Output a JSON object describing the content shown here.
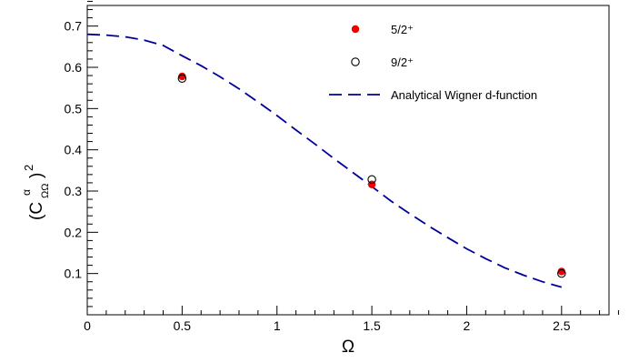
{
  "chart_data": {
    "type": "scatter",
    "xlabel": "Ω",
    "ylabel": {
      "base": "(C",
      "sup": "α",
      "sub": "ΩΩ",
      "close": ")",
      "power": "2"
    },
    "xlim": [
      0,
      2.75
    ],
    "ylim": [
      0,
      0.75
    ],
    "x_ticks": [
      "0",
      "0.5",
      "1",
      "1.5",
      "2",
      "2.5"
    ],
    "y_ticks": [
      "0.1",
      "0.2",
      "0.3",
      "0.4",
      "0.5",
      "0.6",
      "0.7"
    ],
    "grid": false,
    "legend_position": "top-right",
    "series": [
      {
        "name": "5/2⁺",
        "marker": "filled-circle",
        "color": "#ee0000",
        "points": [
          {
            "x": 0.5,
            "y": 0.578
          },
          {
            "x": 1.5,
            "y": 0.316
          },
          {
            "x": 2.5,
            "y": 0.105
          }
        ]
      },
      {
        "name": "9/2⁺",
        "marker": "open-circle",
        "color": "#000000",
        "points": [
          {
            "x": 0.5,
            "y": 0.573
          },
          {
            "x": 1.5,
            "y": 0.328
          },
          {
            "x": 2.5,
            "y": 0.1
          }
        ]
      },
      {
        "name": "Analytical Wigner d-function",
        "marker": "dashed-line",
        "color": "#000099",
        "points": [
          {
            "x": 0.0,
            "y": 0.68
          },
          {
            "x": 0.1,
            "y": 0.678
          },
          {
            "x": 0.2,
            "y": 0.674
          },
          {
            "x": 0.3,
            "y": 0.666
          },
          {
            "x": 0.4,
            "y": 0.653
          },
          {
            "x": 0.5,
            "y": 0.628
          },
          {
            "x": 0.6,
            "y": 0.604
          },
          {
            "x": 0.7,
            "y": 0.577
          },
          {
            "x": 0.8,
            "y": 0.548
          },
          {
            "x": 0.9,
            "y": 0.516
          },
          {
            "x": 1.0,
            "y": 0.483
          },
          {
            "x": 1.1,
            "y": 0.448
          },
          {
            "x": 1.2,
            "y": 0.414
          },
          {
            "x": 1.3,
            "y": 0.379
          },
          {
            "x": 1.4,
            "y": 0.345
          },
          {
            "x": 1.5,
            "y": 0.311
          },
          {
            "x": 1.6,
            "y": 0.276
          },
          {
            "x": 1.7,
            "y": 0.245
          },
          {
            "x": 1.8,
            "y": 0.215
          },
          {
            "x": 1.9,
            "y": 0.187
          },
          {
            "x": 2.0,
            "y": 0.16
          },
          {
            "x": 2.1,
            "y": 0.136
          },
          {
            "x": 2.2,
            "y": 0.114
          },
          {
            "x": 2.3,
            "y": 0.096
          },
          {
            "x": 2.4,
            "y": 0.08
          },
          {
            "x": 2.5,
            "y": 0.067
          }
        ]
      }
    ]
  }
}
